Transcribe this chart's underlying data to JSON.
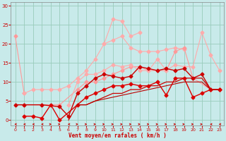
{
  "xlabel": "Vent moyen/en rafales ( km/h )",
  "xlim": [
    -0.5,
    23.5
  ],
  "ylim": [
    -1.5,
    31
  ],
  "yticks": [
    0,
    5,
    10,
    15,
    20,
    25,
    30
  ],
  "xticks": [
    0,
    1,
    2,
    3,
    4,
    5,
    6,
    7,
    8,
    9,
    10,
    11,
    12,
    13,
    14,
    15,
    16,
    17,
    18,
    19,
    20,
    21,
    22,
    23
  ],
  "bg_color": "#c8eaea",
  "grid_color": "#99ccbb",
  "series": [
    {
      "x": [
        0,
        1
      ],
      "y": [
        22,
        7
      ],
      "color": "#ff9999",
      "lw": 0.8,
      "marker": "D",
      "ms": 2.5
    },
    {
      "x": [
        1,
        2,
        3,
        4,
        5,
        6,
        7,
        8,
        9,
        10,
        11,
        12,
        13,
        14,
        15,
        16,
        17,
        18,
        19
      ],
      "y": [
        7,
        8,
        8,
        8,
        8,
        9,
        11,
        13,
        16,
        20,
        21,
        22,
        19,
        18,
        18,
        18,
        18.5,
        19,
        18.5
      ],
      "color": "#ffaaaa",
      "lw": 0.8,
      "marker": "D",
      "ms": 2.5
    },
    {
      "x": [
        10,
        11,
        12,
        13,
        14
      ],
      "y": [
        20,
        26.5,
        26,
        22,
        23
      ],
      "color": "#ffaaaa",
      "lw": 0.8,
      "marker": "D",
      "ms": 2.5
    },
    {
      "x": [
        0,
        1,
        3,
        5,
        7,
        8,
        9,
        10,
        11,
        12,
        13,
        14,
        15,
        16,
        17,
        18,
        19,
        20,
        22,
        23
      ],
      "y": [
        4,
        4,
        4,
        4,
        8,
        10,
        10,
        11,
        12,
        13,
        14,
        14,
        13,
        13,
        13,
        18,
        19,
        11,
        8,
        8
      ],
      "color": "#ff9999",
      "lw": 0.8,
      "marker": "D",
      "ms": 2.5
    },
    {
      "x": [
        6,
        7,
        8,
        9,
        10,
        11,
        12,
        13,
        14,
        15,
        16,
        17,
        18,
        19,
        20,
        21,
        22,
        23
      ],
      "y": [
        4,
        10,
        12,
        12,
        13,
        14.5,
        14,
        14.5,
        13,
        13,
        16,
        13,
        14.5,
        14,
        14,
        23,
        17,
        13
      ],
      "color": "#ffaaaa",
      "lw": 0.8,
      "marker": "D",
      "ms": 2.5
    },
    {
      "x": [
        0,
        1,
        3,
        5,
        6,
        7,
        8,
        9,
        10,
        11,
        12,
        13,
        14,
        15,
        16,
        17,
        18,
        19,
        20,
        21,
        22,
        23
      ],
      "y": [
        4,
        4,
        4,
        3.5,
        1,
        7,
        9,
        11,
        12,
        11.5,
        11,
        11.5,
        14,
        13.5,
        13,
        13.5,
        13,
        13.5,
        11,
        12,
        8,
        8
      ],
      "color": "#cc0000",
      "lw": 1.0,
      "marker": "D",
      "ms": 2.5
    },
    {
      "x": [
        1,
        2,
        3,
        4,
        5,
        7,
        8,
        9,
        10,
        11,
        12,
        13,
        14,
        15,
        16,
        17,
        18,
        19,
        20,
        21,
        22,
        23
      ],
      "y": [
        1,
        1,
        0.5,
        4,
        0,
        4,
        6,
        7,
        8,
        9,
        9,
        9.5,
        9,
        9,
        10,
        6.5,
        11,
        11,
        6,
        7,
        8,
        8
      ],
      "color": "#dd0000",
      "lw": 1.0,
      "marker": "D",
      "ms": 2.5
    },
    {
      "x": [
        6,
        7,
        8,
        9,
        10,
        11,
        12,
        13,
        14,
        15,
        16,
        17,
        18,
        19,
        20,
        21,
        22,
        23
      ],
      "y": [
        0,
        4,
        4,
        5,
        6,
        7,
        7,
        8,
        8,
        9,
        9,
        10,
        10,
        11,
        11,
        11,
        8,
        8
      ],
      "color": "#cc0000",
      "lw": 0.9,
      "marker": null,
      "ms": 0
    },
    {
      "x": [
        7,
        8,
        9,
        10,
        11,
        12,
        13,
        14,
        15,
        16,
        17,
        18,
        19,
        20,
        21,
        22,
        23
      ],
      "y": [
        4,
        4,
        5,
        5.5,
        6,
        6.5,
        7,
        7.5,
        8,
        8.5,
        9,
        9.5,
        10,
        10,
        10,
        8,
        8
      ],
      "color": "#bb0000",
      "lw": 0.8,
      "marker": null,
      "ms": 0
    }
  ],
  "wind_arrow_dirs": [
    -1,
    -1,
    -1,
    -1,
    1,
    1,
    -1,
    1,
    1,
    1,
    1,
    1,
    1,
    1,
    1,
    1,
    1,
    1,
    1,
    1,
    1,
    1,
    -1,
    -1
  ],
  "wind_arrow_color": "#cc0000"
}
